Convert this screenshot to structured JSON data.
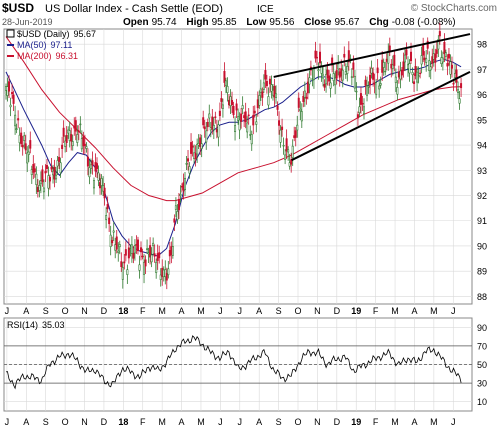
{
  "header": {
    "symbol": "$USD",
    "name": "US Dollar Index - Cash Settle (EOD)",
    "exchange": "ICE",
    "watermark": "© StockCharts.com",
    "date": "28-Jun-2019",
    "open_label": "Open",
    "open": "95.74",
    "high_label": "High",
    "high": "95.85",
    "low_label": "Low",
    "low": "95.56",
    "close_label": "Close",
    "close": "95.67",
    "chg_label": "Chg",
    "chg": "-0.08 (-0.08%)"
  },
  "legend": [
    {
      "label": "$USD (Daily)",
      "value": "95.67",
      "color": "#000000"
    },
    {
      "label": "MA(50)",
      "value": "97.11",
      "color": "#1a1f8c"
    },
    {
      "label": "MA(200)",
      "value": "96.31",
      "color": "#c8102e"
    }
  ],
  "rsi_legend": {
    "label": "RSI(14)",
    "value": "35.03"
  },
  "x_axis_labels": [
    "J",
    "A",
    "S",
    "O",
    "N",
    "D",
    "18",
    "F",
    "M",
    "A",
    "M",
    "J",
    "J",
    "A",
    "S",
    "O",
    "N",
    "D",
    "19",
    "F",
    "M",
    "A",
    "M",
    "J"
  ],
  "colors": {
    "up": "#2f7a2f",
    "down": "#c8102e",
    "ma50": "#1a1f8c",
    "ma200": "#c8102e",
    "grid": "#d9d9d9",
    "trend": "#000000"
  },
  "chart_data": [
    {
      "type": "candlestick",
      "title": "$USD US Dollar Index - Cash Settle (EOD) ICE",
      "y_ticks": [
        88,
        89,
        90,
        91,
        92,
        93,
        94,
        95,
        96,
        97,
        98
      ],
      "ylim": [
        87.7,
        98.6
      ],
      "price_path": [
        {
          "t": 0,
          "v": 96.2
        },
        {
          "t": 2,
          "v": 95.3
        },
        {
          "t": 4,
          "v": 94.0
        },
        {
          "t": 6,
          "v": 93.1
        },
        {
          "t": 8,
          "v": 92.4
        },
        {
          "t": 10,
          "v": 92.8
        },
        {
          "t": 12,
          "v": 93.4
        },
        {
          "t": 14,
          "v": 94.4
        },
        {
          "t": 16,
          "v": 94.7
        },
        {
          "t": 18,
          "v": 93.6
        },
        {
          "t": 20,
          "v": 93.0
        },
        {
          "t": 22,
          "v": 92.0
        },
        {
          "t": 24,
          "v": 90.3
        },
        {
          "t": 26,
          "v": 89.2
        },
        {
          "t": 28,
          "v": 89.9
        },
        {
          "t": 30,
          "v": 89.5
        },
        {
          "t": 32,
          "v": 89.8
        },
        {
          "t": 34,
          "v": 89.3
        },
        {
          "t": 36,
          "v": 89.0
        },
        {
          "t": 37,
          "v": 89.3
        },
        {
          "t": 38,
          "v": 91.2
        },
        {
          "t": 40,
          "v": 92.8
        },
        {
          "t": 42,
          "v": 93.6
        },
        {
          "t": 44,
          "v": 94.5
        },
        {
          "t": 46,
          "v": 94.7
        },
        {
          "t": 48,
          "v": 95.2
        },
        {
          "t": 49,
          "v": 96.3
        },
        {
          "t": 51,
          "v": 95.4
        },
        {
          "t": 53,
          "v": 95.0
        },
        {
          "t": 55,
          "v": 94.7
        },
        {
          "t": 56,
          "v": 95.3
        },
        {
          "t": 58,
          "v": 96.3
        },
        {
          "t": 60,
          "v": 96.5
        },
        {
          "t": 61,
          "v": 95.0
        },
        {
          "t": 62,
          "v": 94.0
        },
        {
          "t": 64,
          "v": 93.6
        },
        {
          "t": 66,
          "v": 95.3
        },
        {
          "t": 68,
          "v": 96.7
        },
        {
          "t": 70,
          "v": 97.2
        },
        {
          "t": 72,
          "v": 96.7
        },
        {
          "t": 74,
          "v": 96.6
        },
        {
          "t": 76,
          "v": 97.4
        },
        {
          "t": 78,
          "v": 96.7
        },
        {
          "t": 79,
          "v": 95.4
        },
        {
          "t": 80,
          "v": 95.9
        },
        {
          "t": 82,
          "v": 96.5
        },
        {
          "t": 84,
          "v": 96.8
        },
        {
          "t": 86,
          "v": 97.4
        },
        {
          "t": 88,
          "v": 96.7
        },
        {
          "t": 90,
          "v": 97.3
        },
        {
          "t": 92,
          "v": 96.8
        },
        {
          "t": 94,
          "v": 97.4
        },
        {
          "t": 96,
          "v": 97.5
        },
        {
          "t": 97,
          "v": 98.1
        },
        {
          "t": 98,
          "v": 97.2
        },
        {
          "t": 99,
          "v": 97.6
        },
        {
          "t": 100,
          "v": 97.2
        },
        {
          "t": 101,
          "v": 96.3
        },
        {
          "t": 102,
          "v": 95.7
        }
      ],
      "ma50_path": [
        {
          "t": 0,
          "v": 96.9
        },
        {
          "t": 4,
          "v": 95.4
        },
        {
          "t": 8,
          "v": 94.0
        },
        {
          "t": 10,
          "v": 93.2
        },
        {
          "t": 12,
          "v": 92.8
        },
        {
          "t": 14,
          "v": 93.3
        },
        {
          "t": 16,
          "v": 93.7
        },
        {
          "t": 18,
          "v": 93.6
        },
        {
          "t": 20,
          "v": 93.1
        },
        {
          "t": 22,
          "v": 92.2
        },
        {
          "t": 24,
          "v": 91.0
        },
        {
          "t": 26,
          "v": 90.4
        },
        {
          "t": 28,
          "v": 90.0
        },
        {
          "t": 30,
          "v": 89.8
        },
        {
          "t": 32,
          "v": 89.7
        },
        {
          "t": 34,
          "v": 89.6
        },
        {
          "t": 36,
          "v": 89.9
        },
        {
          "t": 38,
          "v": 90.9
        },
        {
          "t": 40,
          "v": 92.3
        },
        {
          "t": 42,
          "v": 93.2
        },
        {
          "t": 44,
          "v": 93.9
        },
        {
          "t": 46,
          "v": 94.5
        },
        {
          "t": 48,
          "v": 94.8
        },
        {
          "t": 50,
          "v": 94.9
        },
        {
          "t": 52,
          "v": 94.9
        },
        {
          "t": 54,
          "v": 95.0
        },
        {
          "t": 56,
          "v": 95.2
        },
        {
          "t": 58,
          "v": 95.4
        },
        {
          "t": 60,
          "v": 95.5
        },
        {
          "t": 62,
          "v": 95.7
        },
        {
          "t": 64,
          "v": 96.0
        },
        {
          "t": 66,
          "v": 96.3
        },
        {
          "t": 68,
          "v": 96.5
        },
        {
          "t": 70,
          "v": 96.7
        },
        {
          "t": 72,
          "v": 96.7
        },
        {
          "t": 74,
          "v": 96.6
        },
        {
          "t": 76,
          "v": 96.4
        },
        {
          "t": 78,
          "v": 96.3
        },
        {
          "t": 80,
          "v": 96.3
        },
        {
          "t": 82,
          "v": 96.4
        },
        {
          "t": 84,
          "v": 96.6
        },
        {
          "t": 86,
          "v": 96.8
        },
        {
          "t": 88,
          "v": 96.9
        },
        {
          "t": 90,
          "v": 97.0
        },
        {
          "t": 92,
          "v": 97.0
        },
        {
          "t": 94,
          "v": 97.1
        },
        {
          "t": 96,
          "v": 97.3
        },
        {
          "t": 98,
          "v": 97.4
        },
        {
          "t": 100,
          "v": 97.3
        },
        {
          "t": 102,
          "v": 97.1
        }
      ],
      "ma200_path": [
        {
          "t": 0,
          "v": 98.3
        },
        {
          "t": 4,
          "v": 97.3
        },
        {
          "t": 8,
          "v": 96.2
        },
        {
          "t": 12,
          "v": 95.3
        },
        {
          "t": 16,
          "v": 94.6
        },
        {
          "t": 20,
          "v": 93.9
        },
        {
          "t": 24,
          "v": 93.1
        },
        {
          "t": 28,
          "v": 92.4
        },
        {
          "t": 32,
          "v": 92.0
        },
        {
          "t": 34,
          "v": 91.9
        },
        {
          "t": 36,
          "v": 91.8
        },
        {
          "t": 38,
          "v": 91.8
        },
        {
          "t": 40,
          "v": 91.9
        },
        {
          "t": 44,
          "v": 92.1
        },
        {
          "t": 48,
          "v": 92.5
        },
        {
          "t": 52,
          "v": 92.9
        },
        {
          "t": 56,
          "v": 93.1
        },
        {
          "t": 60,
          "v": 93.3
        },
        {
          "t": 64,
          "v": 93.6
        },
        {
          "t": 68,
          "v": 94.0
        },
        {
          "t": 72,
          "v": 94.4
        },
        {
          "t": 76,
          "v": 94.8
        },
        {
          "t": 80,
          "v": 95.2
        },
        {
          "t": 84,
          "v": 95.5
        },
        {
          "t": 88,
          "v": 95.8
        },
        {
          "t": 92,
          "v": 96.0
        },
        {
          "t": 96,
          "v": 96.2
        },
        {
          "t": 100,
          "v": 96.3
        },
        {
          "t": 102,
          "v": 96.31
        }
      ],
      "trendlines": [
        {
          "t1": 60,
          "v1": 96.7,
          "t2": 104,
          "v2": 98.4
        },
        {
          "t1": 64,
          "v1": 93.4,
          "t2": 104,
          "v2": 96.9
        }
      ]
    },
    {
      "type": "line",
      "title": "RSI(14)",
      "y_ticks": [
        10,
        30,
        50,
        70,
        90
      ],
      "ylim": [
        0,
        100
      ],
      "reference_lines": [
        30,
        50,
        70
      ],
      "rsi_path": [
        {
          "t": 0,
          "v": 40
        },
        {
          "t": 2,
          "v": 28
        },
        {
          "t": 4,
          "v": 38
        },
        {
          "t": 6,
          "v": 36
        },
        {
          "t": 8,
          "v": 33
        },
        {
          "t": 10,
          "v": 52
        },
        {
          "t": 12,
          "v": 58
        },
        {
          "t": 14,
          "v": 62
        },
        {
          "t": 16,
          "v": 54
        },
        {
          "t": 18,
          "v": 42
        },
        {
          "t": 20,
          "v": 45
        },
        {
          "t": 22,
          "v": 32
        },
        {
          "t": 24,
          "v": 28
        },
        {
          "t": 26,
          "v": 46
        },
        {
          "t": 28,
          "v": 42
        },
        {
          "t": 30,
          "v": 36
        },
        {
          "t": 32,
          "v": 48
        },
        {
          "t": 34,
          "v": 44
        },
        {
          "t": 36,
          "v": 52
        },
        {
          "t": 38,
          "v": 68
        },
        {
          "t": 40,
          "v": 74
        },
        {
          "t": 42,
          "v": 79
        },
        {
          "t": 44,
          "v": 72
        },
        {
          "t": 46,
          "v": 62
        },
        {
          "t": 48,
          "v": 57
        },
        {
          "t": 50,
          "v": 64
        },
        {
          "t": 52,
          "v": 45
        },
        {
          "t": 54,
          "v": 50
        },
        {
          "t": 56,
          "v": 58
        },
        {
          "t": 58,
          "v": 63
        },
        {
          "t": 60,
          "v": 44
        },
        {
          "t": 62,
          "v": 35
        },
        {
          "t": 64,
          "v": 38
        },
        {
          "t": 66,
          "v": 55
        },
        {
          "t": 68,
          "v": 64
        },
        {
          "t": 70,
          "v": 62
        },
        {
          "t": 72,
          "v": 50
        },
        {
          "t": 74,
          "v": 56
        },
        {
          "t": 76,
          "v": 58
        },
        {
          "t": 78,
          "v": 43
        },
        {
          "t": 80,
          "v": 49
        },
        {
          "t": 82,
          "v": 54
        },
        {
          "t": 84,
          "v": 59
        },
        {
          "t": 86,
          "v": 62
        },
        {
          "t": 88,
          "v": 49
        },
        {
          "t": 90,
          "v": 57
        },
        {
          "t": 92,
          "v": 52
        },
        {
          "t": 94,
          "v": 64
        },
        {
          "t": 96,
          "v": 66
        },
        {
          "t": 98,
          "v": 54
        },
        {
          "t": 100,
          "v": 43
        },
        {
          "t": 102,
          "v": 35
        }
      ]
    }
  ]
}
